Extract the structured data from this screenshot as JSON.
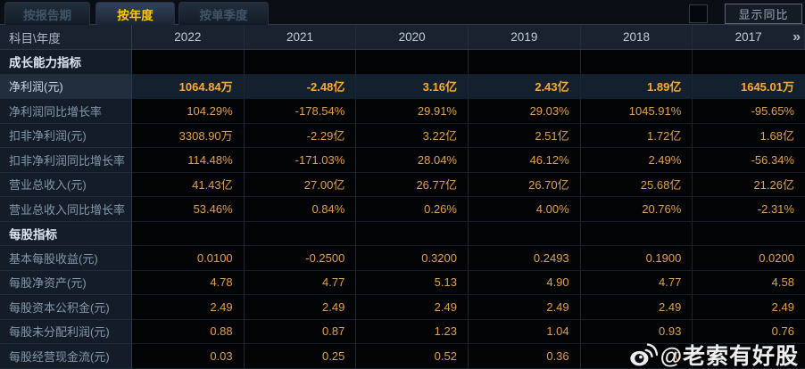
{
  "tabs": [
    {
      "label": "按报告期",
      "active": false
    },
    {
      "label": "按年度",
      "active": true
    },
    {
      "label": "按单季度",
      "active": false
    }
  ],
  "controls": {
    "show_yoy_label": "显示同比",
    "checkbox_checked": false,
    "scroll_more_icon": "»"
  },
  "table": {
    "corner_header": "科目\\年度",
    "year_headers": [
      "2022",
      "2021",
      "2020",
      "2019",
      "2018",
      "2017"
    ],
    "rows": [
      {
        "type": "section",
        "label": "成长能力指标",
        "values": [
          "",
          "",
          "",
          "",
          "",
          ""
        ]
      },
      {
        "type": "data",
        "highlight": true,
        "label": "净利润(元)",
        "values": [
          "1064.84万",
          "-2.48亿",
          "3.16亿",
          "2.43亿",
          "1.89亿",
          "1645.01万"
        ]
      },
      {
        "type": "data",
        "highlight": false,
        "label": "净利润同比增长率",
        "values": [
          "104.29%",
          "-178.54%",
          "29.91%",
          "29.03%",
          "1045.91%",
          "-95.65%"
        ]
      },
      {
        "type": "data",
        "highlight": false,
        "label": "扣非净利润(元)",
        "values": [
          "3308.90万",
          "-2.29亿",
          "3.22亿",
          "2.51亿",
          "1.72亿",
          "1.68亿"
        ]
      },
      {
        "type": "data",
        "highlight": false,
        "label": "扣非净利润同比增长率",
        "values": [
          "114.48%",
          "-171.03%",
          "28.04%",
          "46.12%",
          "2.49%",
          "-56.34%"
        ]
      },
      {
        "type": "data",
        "highlight": false,
        "label": "营业总收入(元)",
        "values": [
          "41.43亿",
          "27.00亿",
          "26.77亿",
          "26.70亿",
          "25.68亿",
          "21.26亿"
        ]
      },
      {
        "type": "data",
        "highlight": false,
        "label": "营业总收入同比增长率",
        "values": [
          "53.46%",
          "0.84%",
          "0.26%",
          "4.00%",
          "20.76%",
          "-2.31%"
        ]
      },
      {
        "type": "section",
        "label": "每股指标",
        "values": [
          "",
          "",
          "",
          "",
          "",
          ""
        ]
      },
      {
        "type": "data",
        "highlight": false,
        "label": "基本每股收益(元)",
        "values": [
          "0.0100",
          "-0.2500",
          "0.3200",
          "0.2493",
          "0.1900",
          "0.0200"
        ]
      },
      {
        "type": "data",
        "highlight": false,
        "label": "每股净资产(元)",
        "values": [
          "4.78",
          "4.77",
          "5.13",
          "4.90",
          "4.77",
          "4.58"
        ]
      },
      {
        "type": "data",
        "highlight": false,
        "label": "每股资本公积金(元)",
        "values": [
          "2.49",
          "2.49",
          "2.49",
          "2.49",
          "2.49",
          "2.49"
        ]
      },
      {
        "type": "data",
        "highlight": false,
        "label": "每股未分配利润(元)",
        "values": [
          "0.88",
          "0.87",
          "1.23",
          "1.04",
          "0.93",
          "0.76"
        ]
      },
      {
        "type": "data",
        "highlight": false,
        "label": "每股经营现金流(元)",
        "values": [
          "0.03",
          "0.25",
          "0.52",
          "0.36",
          "0",
          ""
        ]
      }
    ]
  },
  "watermark": {
    "icon": "weibo-icon",
    "text": "@老索有好股"
  },
  "colors": {
    "background": "#0a0e14",
    "active_tab_text": "#ffc60a",
    "value_text": "#e2a14b",
    "highlight_value_text": "#ffab2d",
    "header_text": "#c0cdda",
    "label_text": "#8299ae"
  }
}
